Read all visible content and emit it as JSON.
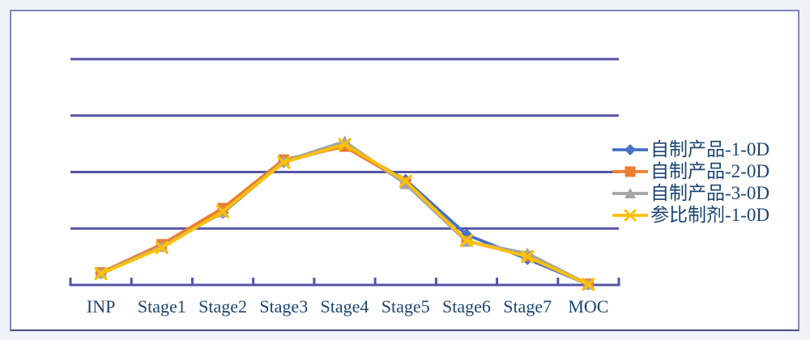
{
  "window": {
    "description": "Embedded spreadsheet-style line chart on a white card"
  },
  "colors": {
    "page_background": "#eef1f7",
    "card_background": "#ffffff",
    "card_border": "#8583c1",
    "gridline": "#5753a4",
    "axis": "#5753a4",
    "label_text": "#1c4472"
  },
  "chart_data": {
    "type": "line",
    "title": "",
    "xlabel": "",
    "ylabel": "",
    "y_axis_labels_visible": false,
    "grid": true,
    "gridline_count_above_axis": 4,
    "ylim": [
      0,
      40
    ],
    "legend_position": "right",
    "categories": [
      "INP",
      "Stage1",
      "Stage2",
      "Stage3",
      "Stage4",
      "Stage5",
      "Stage6",
      "Stage7",
      "MOC"
    ],
    "series": [
      {
        "name": "自制产品-1-0D",
        "color": "#4472C4",
        "marker": "diamond",
        "values": [
          2.1,
          7.0,
          12.8,
          21.8,
          24.7,
          18.6,
          8.9,
          4.6,
          0.1
        ]
      },
      {
        "name": "自制产品-2-0D",
        "color": "#ED7D31",
        "marker": "square",
        "values": [
          2.2,
          7.2,
          13.6,
          22.2,
          24.5,
          18.2,
          7.8,
          5.1,
          0.2
        ]
      },
      {
        "name": "自制产品-3-0D",
        "color": "#A5A5A5",
        "marker": "triangle",
        "values": [
          2.1,
          6.8,
          12.9,
          21.9,
          25.4,
          17.9,
          7.7,
          5.6,
          0.1
        ]
      },
      {
        "name": "参比制剂-1-0D",
        "color": "#FFC000",
        "marker": "x",
        "values": [
          2.0,
          6.6,
          13.0,
          21.7,
          24.9,
          18.4,
          7.9,
          5.0,
          0.1
        ]
      }
    ]
  }
}
